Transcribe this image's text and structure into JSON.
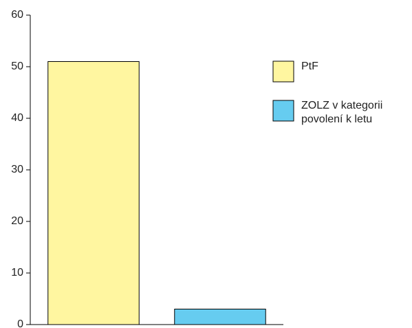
{
  "chart_data": {
    "type": "bar",
    "categories": [
      null
    ],
    "series": [
      {
        "name": "PtF",
        "color": "#fff6a0",
        "values": [
          51
        ]
      },
      {
        "name": "ZOLZ v kategorii povolení k letu",
        "color": "#66ccf0",
        "values": [
          3
        ]
      }
    ],
    "ylim": [
      0,
      60
    ],
    "yticks": [
      0,
      10,
      20,
      30,
      40,
      50,
      60
    ],
    "grid": false,
    "legend": "right"
  }
}
